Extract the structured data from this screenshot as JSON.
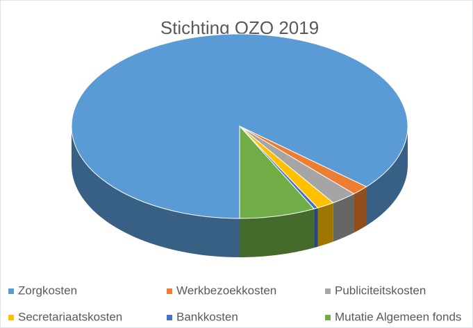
{
  "chart_data": {
    "type": "pie",
    "title": "Stichting OZO 2019",
    "categories": [
      "Zorgkosten",
      "Werkbezoekkosten",
      "Publiciteitskosten",
      "Secretariaatskosten",
      "Bankkosten",
      "Mutatie Algemeen fonds"
    ],
    "values": [
      86.4,
      1.7,
      2.5,
      1.7,
      0.4,
      7.3
    ],
    "colors": [
      "#5b9bd5",
      "#ed7d31",
      "#a5a5a5",
      "#ffc000",
      "#4472c4",
      "#70ad47"
    ],
    "legend": "bottom"
  }
}
